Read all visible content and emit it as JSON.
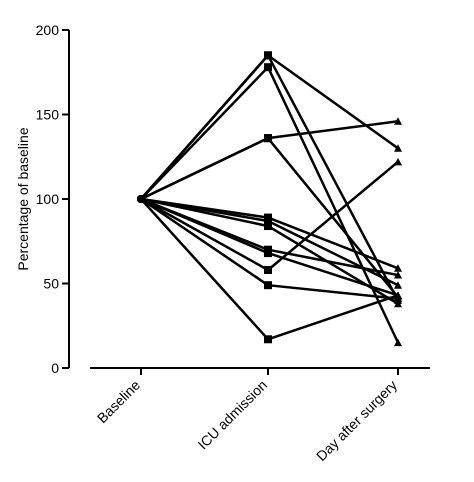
{
  "chart_data": {
    "type": "line",
    "title": "",
    "xlabel": "",
    "ylabel": "Percentage of baseline",
    "categories": [
      "Baseline",
      "ICU admission",
      "Day after surgery"
    ],
    "ylim": [
      0,
      200
    ],
    "yticks": [
      0,
      50,
      100,
      150,
      200
    ],
    "grid": false,
    "legend": "none",
    "line_color": "#000000",
    "markers": [
      "circle",
      "square",
      "triangle"
    ],
    "series": [
      {
        "values": [
          100,
          185,
          40
        ]
      },
      {
        "values": [
          100,
          178,
          15
        ]
      },
      {
        "values": [
          100,
          136,
          146
        ]
      },
      {
        "values": [
          100,
          136,
          42
        ]
      },
      {
        "values": [
          100,
          89,
          59
        ]
      },
      {
        "values": [
          100,
          87,
          49
        ]
      },
      {
        "values": [
          100,
          84,
          38
        ]
      },
      {
        "values": [
          100,
          70,
          55
        ]
      },
      {
        "values": [
          100,
          68,
          43
        ]
      },
      {
        "values": [
          100,
          58,
          122
        ]
      },
      {
        "values": [
          100,
          49,
          41
        ]
      },
      {
        "values": [
          100,
          17,
          43
        ]
      },
      {
        "values": [
          100,
          185,
          130
        ]
      }
    ]
  }
}
